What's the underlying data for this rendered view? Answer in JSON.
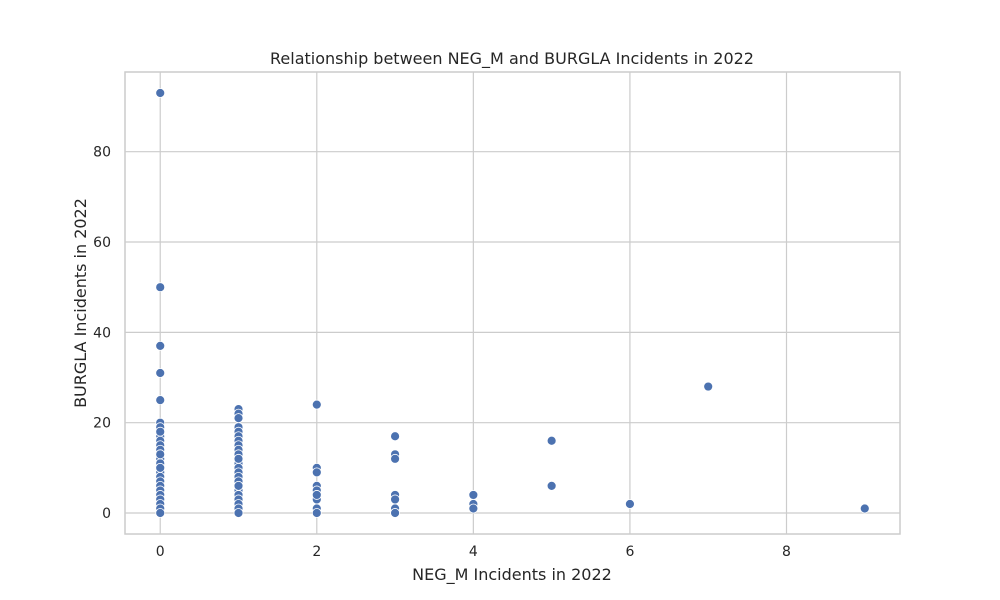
{
  "chart_data": {
    "type": "scatter",
    "title": "Relationship between NEG_M and BURGLA Incidents in 2022",
    "xlabel": "NEG_M Incidents in 2022",
    "ylabel": "BURGLA Incidents in 2022",
    "xlim": [
      -0.45,
      9.45
    ],
    "ylim": [
      -4.65,
      97.65
    ],
    "xticks": [
      0,
      2,
      4,
      6,
      8
    ],
    "yticks": [
      0,
      20,
      40,
      60,
      80
    ],
    "grid": true,
    "point_color": "#4c72b0",
    "series": [
      {
        "x": [
          0,
          0,
          0,
          0,
          0,
          0,
          0,
          0,
          0,
          0,
          0,
          0,
          0,
          0,
          0,
          0,
          0,
          0,
          0,
          0,
          0,
          0,
          0,
          0,
          0,
          0,
          0,
          0,
          1,
          1,
          1,
          1,
          1,
          1,
          1,
          1,
          1,
          1,
          1,
          1,
          1,
          1,
          1,
          1,
          1,
          1,
          1,
          1,
          1,
          1,
          1,
          1,
          1,
          2,
          2,
          2,
          2,
          2,
          2,
          2,
          2,
          2,
          2,
          3,
          3,
          3,
          3,
          3,
          3,
          3,
          3,
          4,
          4,
          4,
          5,
          5,
          6,
          7,
          9
        ],
        "y": [
          93,
          50,
          37,
          31,
          25,
          20,
          19,
          17,
          16,
          15,
          14,
          13,
          12,
          11,
          10,
          9,
          8,
          7,
          6,
          5,
          4,
          3,
          2,
          1,
          0,
          18,
          13,
          10,
          23,
          22,
          21,
          19,
          18,
          17,
          16,
          15,
          14,
          13,
          11,
          10,
          9,
          8,
          7,
          6,
          5,
          4,
          3,
          2,
          1,
          0,
          21,
          12,
          6,
          24,
          10,
          9,
          6,
          5,
          4,
          3,
          1,
          0,
          4,
          17,
          13,
          12,
          4,
          3,
          1,
          0,
          0,
          4,
          2,
          1,
          16,
          6,
          2,
          28,
          1
        ]
      }
    ]
  }
}
